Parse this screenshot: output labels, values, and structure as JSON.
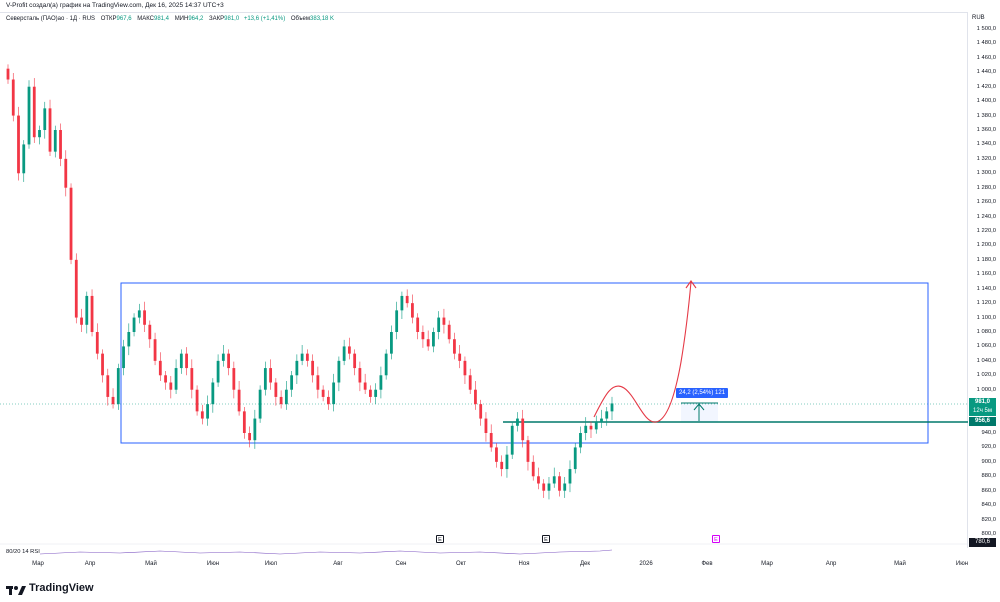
{
  "header": {
    "attribution": "V-Profit создал(а) график на TradingView.com, Дек 16, 2025 14:37 UTC+3"
  },
  "legend": {
    "symbol": "Северсталь (ПАО)ао · 1Д · RUS",
    "open_label": "ОТКР",
    "open_value": "967,6",
    "high_label": "МАКС",
    "high_value": "981,4",
    "low_label": "МИН",
    "low_value": "964,2",
    "close_label": "ЗАКР",
    "close_value": "981,0",
    "change": "+13,6 (+1,41%)",
    "volume_label": "Объем",
    "volume_value": "383,18 K"
  },
  "currency": "RUB",
  "price_axis": {
    "ticks": [
      "1 500,0",
      "1 480,0",
      "1 460,0",
      "1 440,0",
      "1 420,0",
      "1 400,0",
      "1 380,0",
      "1 360,0",
      "1 340,0",
      "1 320,0",
      "1 300,0",
      "1 280,0",
      "1 260,0",
      "1 240,0",
      "1 220,0",
      "1 200,0",
      "1 180,0",
      "1 160,0",
      "1 140,0",
      "1 120,0",
      "1 100,0",
      "1 080,0",
      "1 060,0",
      "1 040,0",
      "1 020,0",
      "1 000,0",
      "940,0",
      "920,0",
      "900,0",
      "880,0",
      "860,0",
      "840,0",
      "820,0",
      "800,0"
    ],
    "last_price": "981,0",
    "countdown": "12ч 5м",
    "level_price": "956,6",
    "rsi_value": "780,6"
  },
  "time_axis": {
    "labels": [
      "Мар",
      "Апр",
      "Май",
      "Июн",
      "Июл",
      "Авг",
      "Сен",
      "Окт",
      "Ноя",
      "Дек",
      "2026",
      "Фев",
      "Мар",
      "Апр",
      "Май",
      "Июн"
    ]
  },
  "events": {
    "earnings_marker": "E"
  },
  "measure": {
    "text": "24,2 (2,54%) 121"
  },
  "indicator": {
    "label": "80/20 14 RSI"
  },
  "brand": {
    "name": "TradingView"
  },
  "colors": {
    "up": "#089981",
    "down": "#f23645",
    "box": "#2962ff",
    "level": "#00796b",
    "projection": "#d32f2f",
    "background": "#ffffff"
  },
  "chart_data": {
    "type": "candlestick",
    "price_range": [
      800,
      1500
    ],
    "box_range": {
      "low": 924,
      "high": 1150
    },
    "support_level": 956.6,
    "projection_target": 1150,
    "closes": [
      1430,
      1380,
      1300,
      1340,
      1420,
      1350,
      1360,
      1390,
      1330,
      1360,
      1320,
      1280,
      1180,
      1100,
      1090,
      1130,
      1080,
      1050,
      1020,
      990,
      980,
      1030,
      1060,
      1080,
      1100,
      1110,
      1090,
      1070,
      1040,
      1020,
      1010,
      1000,
      1030,
      1050,
      1030,
      1000,
      970,
      960,
      980,
      1010,
      1040,
      1050,
      1030,
      1000,
      970,
      940,
      930,
      960,
      1000,
      1030,
      1010,
      990,
      980,
      1000,
      1020,
      1040,
      1050,
      1040,
      1020,
      1000,
      990,
      980,
      1010,
      1040,
      1060,
      1050,
      1030,
      1010,
      1000,
      990,
      1000,
      1020,
      1050,
      1080,
      1110,
      1130,
      1120,
      1100,
      1080,
      1070,
      1060,
      1080,
      1100,
      1090,
      1070,
      1050,
      1040,
      1020,
      1000,
      980,
      960,
      940,
      920,
      900,
      890,
      910,
      950,
      960,
      930,
      900,
      880,
      870,
      860,
      870,
      880,
      860,
      870,
      890,
      920,
      940,
      950,
      945,
      955,
      960,
      970,
      981
    ]
  }
}
